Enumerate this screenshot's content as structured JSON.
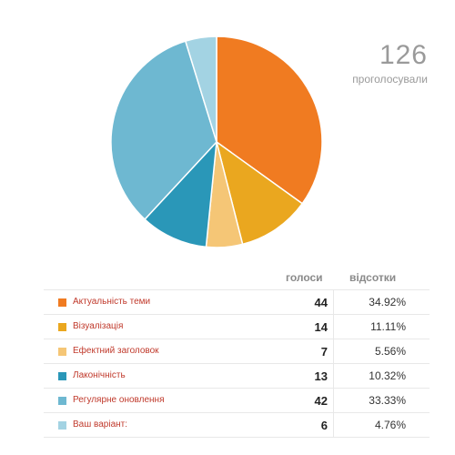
{
  "chart_data": {
    "type": "pie",
    "total": "126",
    "total_label": "проголосували",
    "columns": {
      "votes": "голоси",
      "percent": "відсотки"
    },
    "slices": [
      {
        "label": "Актуальність теми",
        "value": 44,
        "percent": "34.92%",
        "color": "#f07b21"
      },
      {
        "label": "Візуалізація",
        "value": 14,
        "percent": "11.11%",
        "color": "#eaa71f"
      },
      {
        "label": "Ефектний заголовок",
        "value": 7,
        "percent": "5.56%",
        "color": "#f5c676"
      },
      {
        "label": "Лаконічність",
        "value": 13,
        "percent": "10.32%",
        "color": "#2a97b8"
      },
      {
        "label": "Регулярне оновлення",
        "value": 42,
        "percent": "33.33%",
        "color": "#6eb8d1"
      },
      {
        "label": "Ваш варіант:",
        "value": 6,
        "percent": "4.76%",
        "color": "#a3d3e3"
      }
    ]
  }
}
